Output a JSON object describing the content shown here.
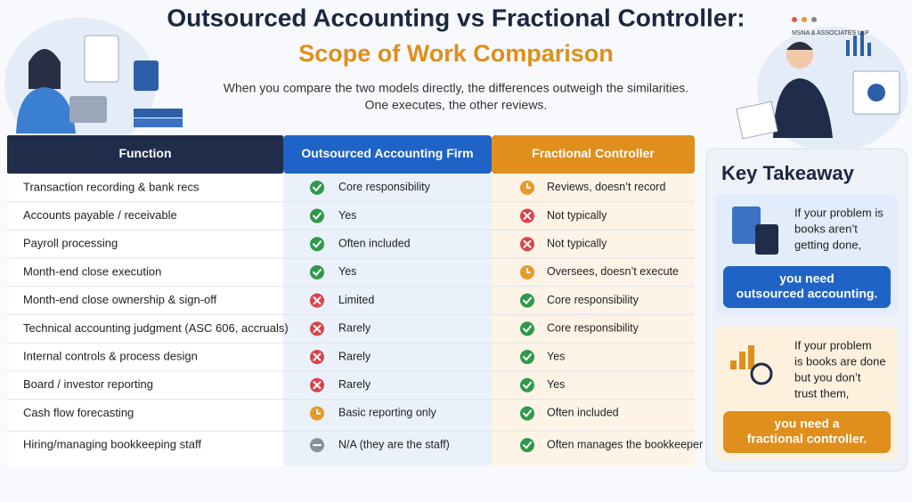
{
  "header": {
    "title_line1": "Outsourced Accounting vs Fractional Controller:",
    "title_line2": "Scope of Work Comparison",
    "subtitle_lines": [
      "When you compare the two models directly, the differences outweigh the similarities.",
      "One executes, the other reviews."
    ],
    "logo": "MSNA & ASSOCIATES LLP"
  },
  "table": {
    "headers": [
      "Function",
      "Outsourced Accounting Firm",
      "Fractional Controller"
    ],
    "rows": [
      {
        "function": "Transaction recording & bank recs",
        "outsourced": {
          "icon": "check",
          "text": "Core responsibility"
        },
        "fractional": {
          "icon": "clock",
          "text": "Reviews, doesn’t record"
        }
      },
      {
        "function": "Accounts payable / receivable",
        "outsourced": {
          "icon": "check",
          "text": "Yes"
        },
        "fractional": {
          "icon": "cross",
          "text": "Not typically"
        }
      },
      {
        "function": "Payroll processing",
        "outsourced": {
          "icon": "check",
          "text": "Often included"
        },
        "fractional": {
          "icon": "cross",
          "text": "Not typically"
        }
      },
      {
        "function": "Month-end close execution",
        "outsourced": {
          "icon": "check",
          "text": "Yes"
        },
        "fractional": {
          "icon": "clock",
          "text": "Oversees, doesn’t execute"
        }
      },
      {
        "function": "Month-end close ownership & sign-off",
        "outsourced": {
          "icon": "cross",
          "text": "Limited"
        },
        "fractional": {
          "icon": "check",
          "text": "Core responsibility"
        }
      },
      {
        "function": "Technical accounting judgment (ASC 606, accruals)",
        "outsourced": {
          "icon": "cross",
          "text": "Rarely"
        },
        "fractional": {
          "icon": "check",
          "text": "Core responsibility"
        }
      },
      {
        "function": "Internal controls & process design",
        "outsourced": {
          "icon": "cross",
          "text": "Rarely"
        },
        "fractional": {
          "icon": "check",
          "text": "Yes"
        }
      },
      {
        "function": "Board / investor reporting",
        "outsourced": {
          "icon": "cross",
          "text": "Rarely"
        },
        "fractional": {
          "icon": "check",
          "text": "Yes"
        }
      },
      {
        "function": "Cash flow forecasting",
        "outsourced": {
          "icon": "clock",
          "text": "Basic reporting only"
        },
        "fractional": {
          "icon": "check",
          "text": "Often included"
        }
      },
      {
        "function": "Hiring/managing bookkeeping staff",
        "outsourced": {
          "icon": "minus",
          "text": "N/A (they are the staff)"
        },
        "fractional": {
          "icon": "check",
          "text": "Often manages the bookkeeper"
        }
      }
    ]
  },
  "takeaway": {
    "title": "Key Takeaway",
    "cards": [
      {
        "lines": [
          "If your problem is",
          "books aren’t",
          "getting done,"
        ],
        "button": [
          "you need",
          "outsourced accounting."
        ]
      },
      {
        "lines": [
          "If your problem",
          "is books are done",
          "but you don’t",
          "trust them,"
        ],
        "button": [
          "you need a",
          "fractional controller."
        ]
      }
    ]
  }
}
